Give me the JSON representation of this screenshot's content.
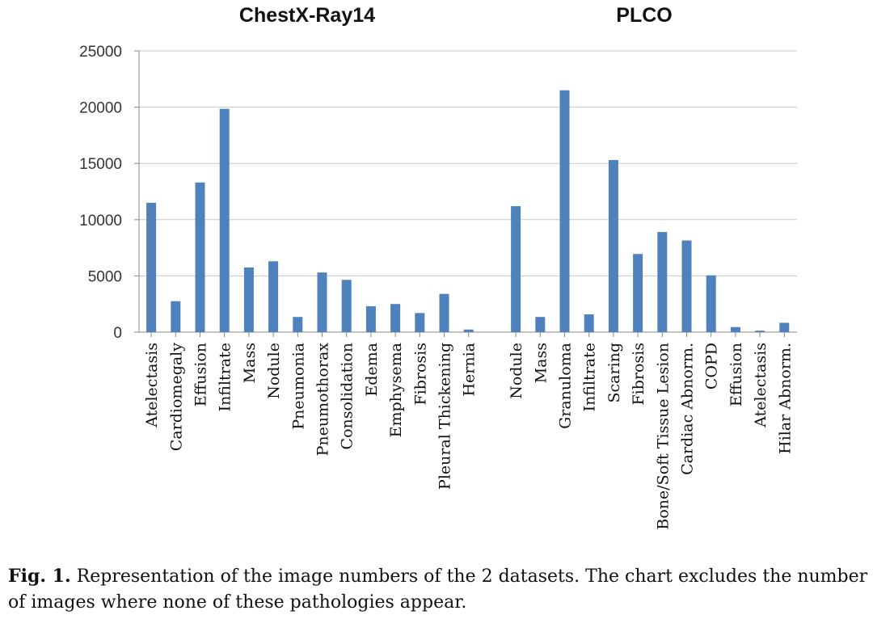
{
  "chart_data": {
    "type": "bar",
    "ylim": [
      0,
      25000
    ],
    "yticks": [
      0,
      5000,
      10000,
      15000,
      20000,
      25000
    ],
    "grid": true,
    "bar_color": "#4f81bd",
    "groups": [
      {
        "title": "ChestX-Ray14",
        "categories": [
          "Atelectasis",
          "Cardiomegaly",
          "Effusion",
          "Infiltrate",
          "Mass",
          "Nodule",
          "Pneumonia",
          "Pneumothorax",
          "Consolidation",
          "Edema",
          "Emphysema",
          "Fibrosis",
          "Pleural Thickening",
          "Hernia"
        ],
        "values": [
          11500,
          2750,
          13300,
          19850,
          5750,
          6300,
          1350,
          5300,
          4650,
          2300,
          2500,
          1700,
          3400,
          230
        ]
      },
      {
        "title": "PLCO",
        "categories": [
          "Nodule",
          "Mass",
          "Granuloma",
          "Infiltrate",
          "Scaring",
          "Fibrosis",
          "Bone/Soft Tissue Lesion",
          "Cardiac Abnorm.",
          "COPD",
          "Effusion",
          "Atelectasis",
          "Hilar Abnorm."
        ],
        "values": [
          11200,
          1350,
          21500,
          1580,
          15300,
          6950,
          8900,
          8150,
          5050,
          450,
          130,
          830
        ]
      }
    ]
  },
  "caption": {
    "label": "Fig. 1.",
    "text": " Representation of the image numbers of the 2 datasets. The chart excludes the number of images where none of these pathologies appear."
  }
}
